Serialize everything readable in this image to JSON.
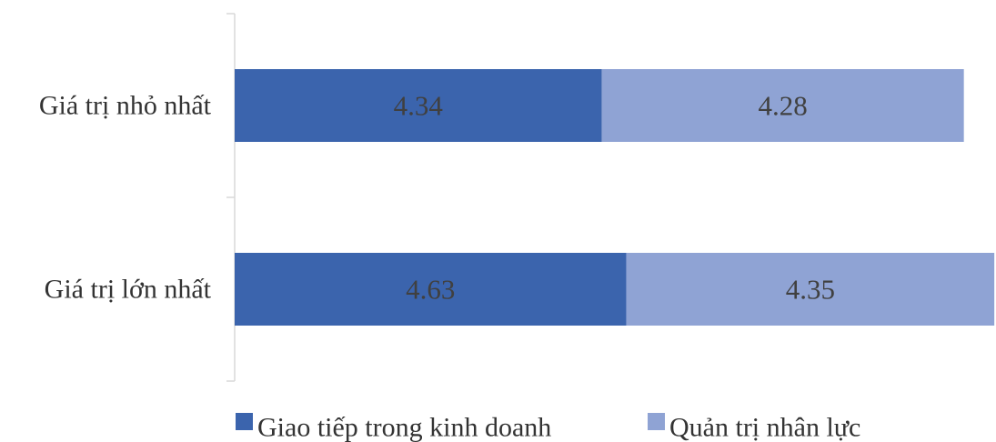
{
  "chart_data": {
    "type": "bar",
    "orientation": "horizontal",
    "stacked": true,
    "categories": [
      "Giá trị nhỏ nhất",
      "Giá trị lớn nhất"
    ],
    "series": [
      {
        "name": "Giao tiếp trong kinh doanh",
        "values": [
          4.34,
          4.63
        ],
        "color": "#3B64AD"
      },
      {
        "name": "Quản trị nhân lực",
        "values": [
          4.28,
          4.35
        ],
        "color": "#8FA3D4"
      }
    ],
    "data_label_color": "#404040",
    "axis_color": "#D9D9D9",
    "text_color": "#333333",
    "xlim": [
      0,
      9.0
    ],
    "grid": false,
    "legend_position": "bottom"
  }
}
